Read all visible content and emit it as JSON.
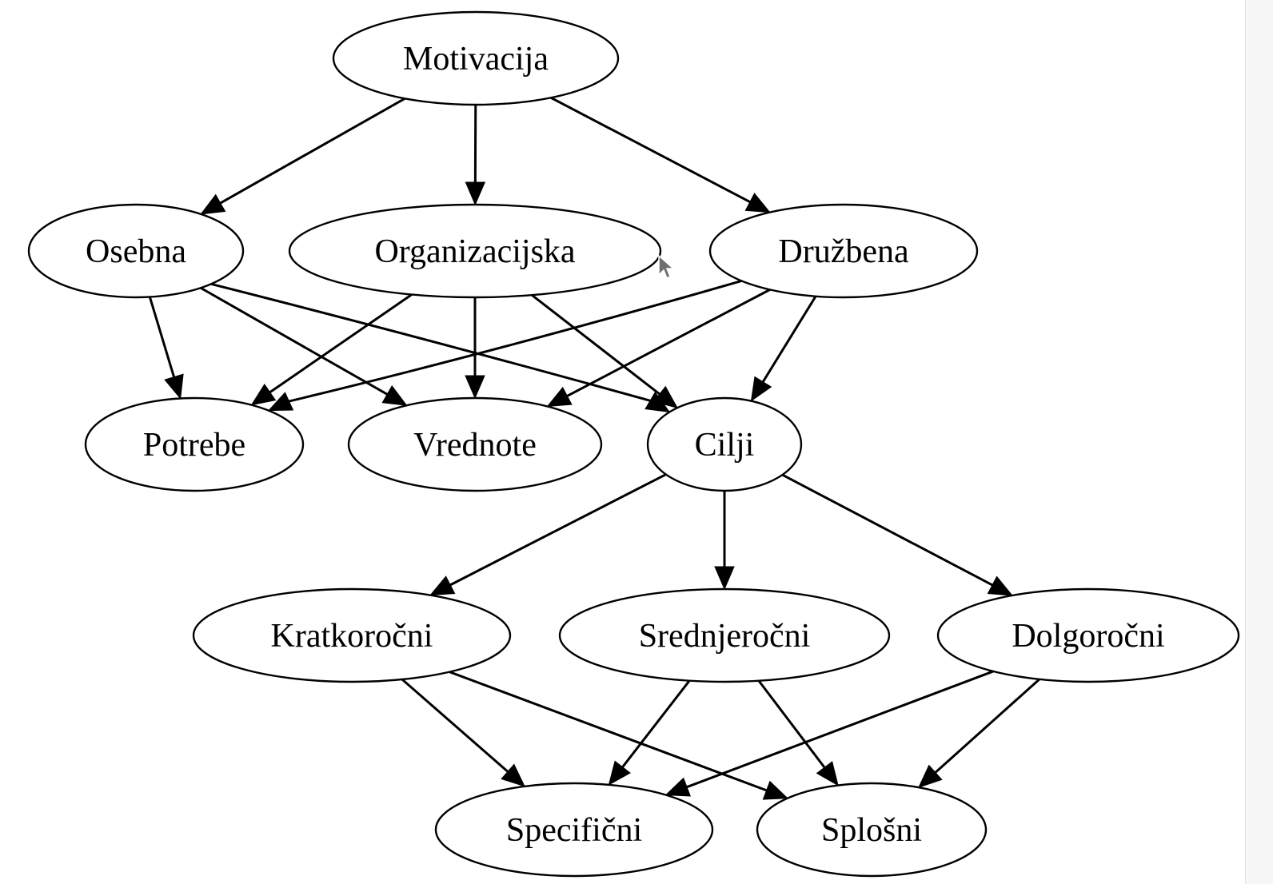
{
  "diagram": {
    "nodes": [
      {
        "id": "motivacija",
        "label": "Motivacija"
      },
      {
        "id": "osebna",
        "label": "Osebna"
      },
      {
        "id": "organizacijska",
        "label": "Organizacijska"
      },
      {
        "id": "druzbena",
        "label": "Družbena"
      },
      {
        "id": "potrebe",
        "label": "Potrebe"
      },
      {
        "id": "vrednote",
        "label": "Vrednote"
      },
      {
        "id": "cilji",
        "label": "Cilji"
      },
      {
        "id": "kratkorocni",
        "label": "Kratkoročni"
      },
      {
        "id": "srednjerocni",
        "label": "Srednjeročni"
      },
      {
        "id": "dolgorocni",
        "label": "Dolgoročni"
      },
      {
        "id": "specificni",
        "label": "Specifični"
      },
      {
        "id": "splosni",
        "label": "Splošni"
      }
    ],
    "edges": [
      {
        "from": "motivacija",
        "to": "osebna"
      },
      {
        "from": "motivacija",
        "to": "organizacijska"
      },
      {
        "from": "motivacija",
        "to": "druzbena"
      },
      {
        "from": "osebna",
        "to": "potrebe"
      },
      {
        "from": "osebna",
        "to": "vrednote"
      },
      {
        "from": "osebna",
        "to": "cilji"
      },
      {
        "from": "organizacijska",
        "to": "potrebe"
      },
      {
        "from": "organizacijska",
        "to": "vrednote"
      },
      {
        "from": "organizacijska",
        "to": "cilji"
      },
      {
        "from": "druzbena",
        "to": "potrebe"
      },
      {
        "from": "druzbena",
        "to": "vrednote"
      },
      {
        "from": "druzbena",
        "to": "cilji"
      },
      {
        "from": "cilji",
        "to": "kratkorocni"
      },
      {
        "from": "cilji",
        "to": "srednjerocni"
      },
      {
        "from": "cilji",
        "to": "dolgorocni"
      },
      {
        "from": "kratkorocni",
        "to": "specificni"
      },
      {
        "from": "kratkorocni",
        "to": "splosni"
      },
      {
        "from": "srednjerocni",
        "to": "specificni"
      },
      {
        "from": "srednjerocni",
        "to": "splosni"
      },
      {
        "from": "dolgorocni",
        "to": "specificni"
      },
      {
        "from": "dolgorocni",
        "to": "splosni"
      }
    ]
  },
  "icons": {
    "cursor": "mouse-pointer-icon"
  }
}
